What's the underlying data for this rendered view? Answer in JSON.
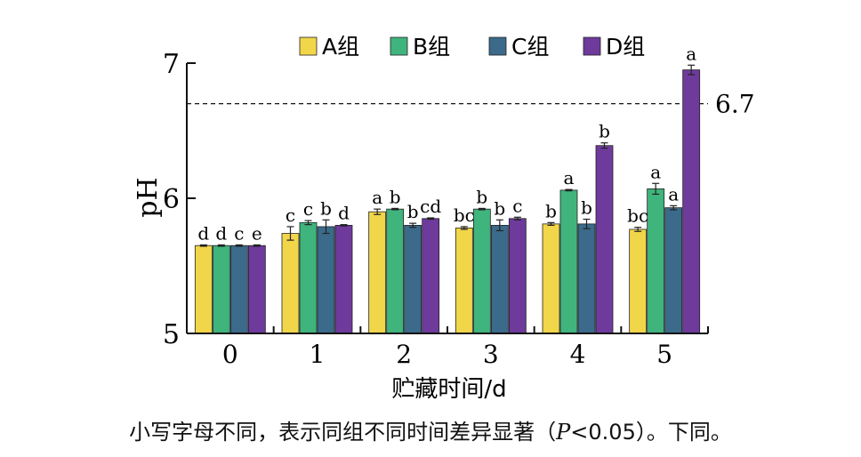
{
  "chart_data": {
    "type": "bar",
    "xlabel": "贮藏时间/d",
    "ylabel": "pH",
    "ylim": [
      5,
      7
    ],
    "yticks": [
      "5",
      "6",
      "7"
    ],
    "categories": [
      "0",
      "1",
      "2",
      "3",
      "4",
      "5"
    ],
    "legend_position": "top",
    "reference_line": {
      "value": 6.7,
      "label": "6.7",
      "style": "dashed"
    },
    "series": [
      {
        "name": "A组",
        "color": "#f2d64a",
        "values": [
          5.65,
          5.74,
          5.9,
          5.78,
          5.81,
          5.77
        ],
        "errors": [
          0.005,
          0.05,
          0.02,
          0.01,
          0.01,
          0.015
        ],
        "letters": [
          "d",
          "c",
          "a",
          "bc",
          "b",
          "bc"
        ]
      },
      {
        "name": "B组",
        "color": "#3fb47c",
        "values": [
          5.65,
          5.82,
          5.92,
          5.92,
          6.06,
          6.07
        ],
        "errors": [
          0.005,
          0.015,
          0.005,
          0.005,
          0.005,
          0.04
        ],
        "letters": [
          "d",
          "c",
          "b",
          "b",
          "a",
          "a"
        ]
      },
      {
        "name": "C组",
        "color": "#3b6a8a",
        "values": [
          5.65,
          5.79,
          5.8,
          5.8,
          5.81,
          5.93
        ],
        "errors": [
          0.005,
          0.05,
          0.015,
          0.04,
          0.035,
          0.015
        ],
        "letters": [
          "c",
          "b",
          "b",
          "b",
          "b",
          "a"
        ]
      },
      {
        "name": "D组",
        "color": "#6e3a9c",
        "values": [
          5.65,
          5.8,
          5.85,
          5.85,
          6.39,
          6.95
        ],
        "errors": [
          0.005,
          0.005,
          0.005,
          0.01,
          0.02,
          0.035
        ],
        "letters": [
          "e",
          "d",
          "cd",
          "c",
          "b",
          "a"
        ]
      }
    ]
  },
  "caption": {
    "before": "小写字母不同，表示同组不同时间差异显著（",
    "p_symbol": "P",
    "after": "<0.05）。下同。"
  }
}
